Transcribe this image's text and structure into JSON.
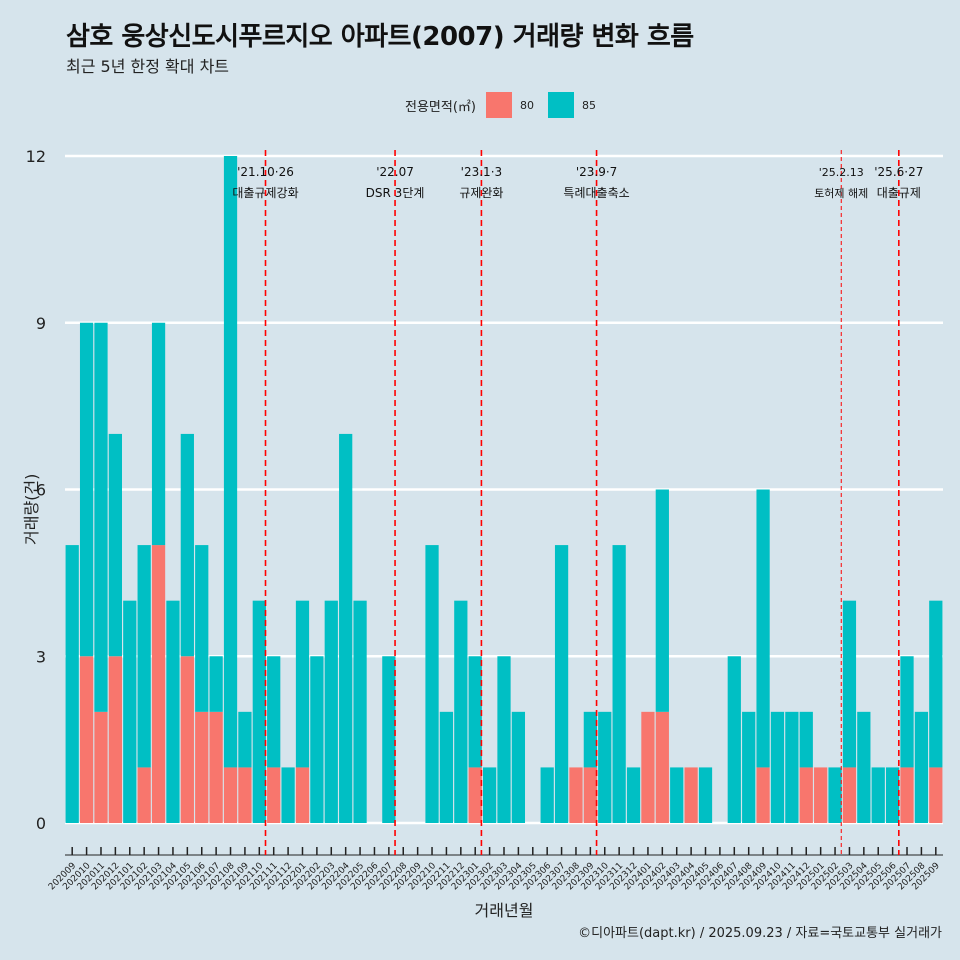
{
  "title": "삼호 웅상신도시푸르지오 아파트(2007) 거래량 변화 흐름",
  "subtitle": "최근 5년 한정 확대 차트",
  "caption": "©디아파트(dapt.kr) / 2025.09.23 / 자료=국토교통부 실거래가",
  "colors": {
    "s80": "#f8766d",
    "s85": "#00bfc4",
    "bg": "#d6e4ec",
    "grid": "#ffffff",
    "event": "#ff0000"
  },
  "chart_data": {
    "type": "bar",
    "stacked": true,
    "xlabel": "거래년월",
    "ylabel": "거래량(건)",
    "ylim": [
      0,
      12
    ],
    "yticks": [
      0,
      3,
      6,
      9,
      12
    ],
    "legend": {
      "title": "전용면적(㎡)",
      "position": "top",
      "entries": [
        "80",
        "85"
      ]
    },
    "categories": [
      "202009",
      "202010",
      "202011",
      "202012",
      "202101",
      "202102",
      "202103",
      "202104",
      "202105",
      "202106",
      "202107",
      "202108",
      "202109",
      "202110",
      "202111",
      "202112",
      "202201",
      "202202",
      "202203",
      "202204",
      "202205",
      "202206",
      "202207",
      "202208",
      "202209",
      "202210",
      "202211",
      "202212",
      "202301",
      "202302",
      "202303",
      "202304",
      "202305",
      "202306",
      "202307",
      "202308",
      "202309",
      "202310",
      "202311",
      "202312",
      "202401",
      "202402",
      "202403",
      "202404",
      "202405",
      "202406",
      "202407",
      "202408",
      "202409",
      "202410",
      "202411",
      "202412",
      "202501",
      "202502",
      "202503",
      "202504",
      "202505",
      "202506",
      "202507",
      "202508",
      "202509"
    ],
    "series": [
      {
        "name": "80",
        "values": [
          0,
          3,
          2,
          3,
          0,
          1,
          5,
          0,
          3,
          2,
          2,
          1,
          1,
          0,
          1,
          0,
          1,
          0,
          0,
          0,
          0,
          0,
          0,
          0,
          0,
          0,
          0,
          0,
          1,
          0,
          0,
          0,
          0,
          0,
          0,
          1,
          1,
          0,
          0,
          0,
          2,
          2,
          0,
          1,
          0,
          0,
          0,
          0,
          1,
          0,
          0,
          1,
          1,
          0,
          1,
          0,
          0,
          0,
          1,
          0,
          1
        ]
      },
      {
        "name": "85",
        "values": [
          5,
          6,
          7,
          4,
          4,
          4,
          4,
          4,
          4,
          3,
          1,
          11,
          1,
          4,
          2,
          1,
          3,
          3,
          4,
          7,
          4,
          0,
          3,
          0,
          0,
          5,
          2,
          4,
          2,
          1,
          3,
          2,
          0,
          1,
          5,
          0,
          1,
          2,
          5,
          1,
          0,
          4,
          1,
          0,
          1,
          0,
          3,
          2,
          5,
          2,
          2,
          1,
          0,
          1,
          3,
          2,
          1,
          1,
          2,
          2,
          3
        ]
      }
    ],
    "events": [
      {
        "after": "202110",
        "date": "'21.10·26",
        "label": "대출규제강화",
        "style": "dashed"
      },
      {
        "after": "202207",
        "date": "'22.07",
        "label": "DSR 3단계",
        "style": "dashed"
      },
      {
        "after": "202301",
        "date": "'23.1·3",
        "label": "규제완화",
        "style": "dashed"
      },
      {
        "after": "202309",
        "date": "'23.9·7",
        "label": "특례대출축소",
        "style": "dashed"
      },
      {
        "after": "202502",
        "date": "'25.2.13",
        "label": "토허제 해제",
        "style": "fine"
      },
      {
        "after": "202506",
        "date": "'25.6·27",
        "label": "대출규제",
        "style": "dashed"
      }
    ]
  }
}
